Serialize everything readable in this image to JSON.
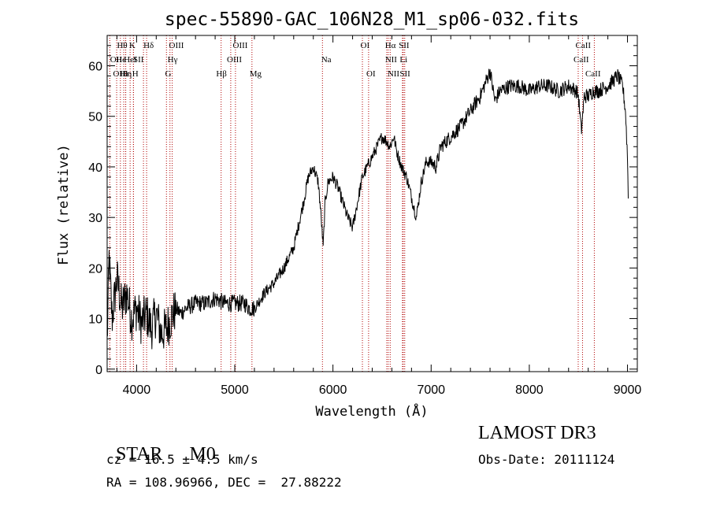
{
  "chart_data": {
    "type": "line",
    "title": "spec-55890-GAC_106N28_M1_sp06-032.fits",
    "xlabel": "Wavelength (Å)",
    "ylabel": "Flux (relative)",
    "xlim": [
      3700,
      9100
    ],
    "ylim": [
      -0.5,
      66
    ],
    "xticks": [
      4000,
      5000,
      6000,
      7000,
      8000,
      9000
    ],
    "yticks": [
      0,
      10,
      20,
      30,
      40,
      50,
      60
    ],
    "spectrum_anchor_points": [
      [
        3700,
        5
      ],
      [
        3720,
        22
      ],
      [
        3750,
        10
      ],
      [
        3800,
        18
      ],
      [
        3850,
        12
      ],
      [
        3900,
        15
      ],
      [
        3950,
        10
      ],
      [
        4000,
        12
      ],
      [
        4050,
        9
      ],
      [
        4100,
        11
      ],
      [
        4150,
        8
      ],
      [
        4200,
        11
      ],
      [
        4250,
        7
      ],
      [
        4300,
        8
      ],
      [
        4350,
        10
      ],
      [
        4400,
        12
      ],
      [
        4450,
        11
      ],
      [
        4500,
        12
      ],
      [
        4600,
        13
      ],
      [
        4700,
        13
      ],
      [
        4800,
        14
      ],
      [
        4900,
        13
      ],
      [
        5000,
        13
      ],
      [
        5100,
        13
      ],
      [
        5150,
        12
      ],
      [
        5200,
        12
      ],
      [
        5300,
        15
      ],
      [
        5400,
        17
      ],
      [
        5500,
        20
      ],
      [
        5600,
        24
      ],
      [
        5700,
        33
      ],
      [
        5750,
        38
      ],
      [
        5800,
        40
      ],
      [
        5850,
        37
      ],
      [
        5880,
        30
      ],
      [
        5900,
        24
      ],
      [
        5920,
        33
      ],
      [
        5950,
        37
      ],
      [
        6000,
        38
      ],
      [
        6050,
        36
      ],
      [
        6100,
        33
      ],
      [
        6150,
        30
      ],
      [
        6200,
        28
      ],
      [
        6250,
        33
      ],
      [
        6300,
        38
      ],
      [
        6350,
        40
      ],
      [
        6400,
        42
      ],
      [
        6450,
        44
      ],
      [
        6500,
        46
      ],
      [
        6550,
        45
      ],
      [
        6580,
        44
      ],
      [
        6620,
        46
      ],
      [
        6650,
        43
      ],
      [
        6700,
        40
      ],
      [
        6750,
        38
      ],
      [
        6800,
        34
      ],
      [
        6850,
        30
      ],
      [
        6900,
        37
      ],
      [
        6950,
        41
      ],
      [
        7000,
        41
      ],
      [
        7050,
        40
      ],
      [
        7100,
        44
      ],
      [
        7200,
        46
      ],
      [
        7300,
        48
      ],
      [
        7400,
        51
      ],
      [
        7500,
        54
      ],
      [
        7560,
        57
      ],
      [
        7600,
        59
      ],
      [
        7650,
        53
      ],
      [
        7700,
        55
      ],
      [
        7800,
        56
      ],
      [
        7900,
        56
      ],
      [
        8000,
        55
      ],
      [
        8100,
        56
      ],
      [
        8200,
        56
      ],
      [
        8300,
        55
      ],
      [
        8400,
        56
      ],
      [
        8480,
        55
      ],
      [
        8500,
        54
      ],
      [
        8530,
        47
      ],
      [
        8560,
        54
      ],
      [
        8600,
        54
      ],
      [
        8650,
        55
      ],
      [
        8700,
        55
      ],
      [
        8800,
        56
      ],
      [
        8900,
        58
      ],
      [
        8950,
        56
      ],
      [
        8980,
        51
      ],
      [
        9000,
        42
      ],
      [
        9010,
        32
      ]
    ],
    "lines": [
      {
        "label": "Hθ",
        "wl": 3797,
        "row": 1,
        "lx": 3800
      },
      {
        "label": "OII",
        "wl": 3727,
        "row": 2,
        "lx": 3730
      },
      {
        "label": "OIII",
        "wl": 3869,
        "row": 3,
        "lx": 3760
      },
      {
        "label": "Hε",
        "wl": 3889,
        "row": 3,
        "lx": 3830
      },
      {
        "label": "He",
        "wl": 3889,
        "row": 2,
        "lx": 3790
      },
      {
        "label": "K",
        "wl": 3934,
        "row": 1,
        "lx": 3925
      },
      {
        "label": "HeI",
        "wl": 3968,
        "row": 2,
        "lx": 3870
      },
      {
        "label": "η",
        "wl": 3835,
        "row": 3,
        "lx": 3905
      },
      {
        "label": "SII",
        "wl": 4070,
        "row": 2,
        "lx": 3965
      },
      {
        "label": "H",
        "wl": 3968,
        "row": 3,
        "lx": 3955
      },
      {
        "label": "Hδ",
        "wl": 4102,
        "row": 1,
        "lx": 4070
      },
      {
        "label": "OIII",
        "wl": 4363,
        "row": 1,
        "lx": 4330
      },
      {
        "label": "Hγ",
        "wl": 4340,
        "row": 2,
        "lx": 4315
      },
      {
        "label": "G",
        "wl": 4304,
        "row": 3,
        "lx": 4290
      },
      {
        "label": "Hβ",
        "wl": 4861,
        "row": 3,
        "lx": 4810
      },
      {
        "label": "OIII",
        "wl": 4959,
        "row": 2,
        "lx": 4920
      },
      {
        "label": "OIII",
        "wl": 5007,
        "row": 1,
        "lx": 4980
      },
      {
        "label": "Mg",
        "wl": 5175,
        "row": 3,
        "lx": 5150
      },
      {
        "label": "Na",
        "wl": 5893,
        "row": 2,
        "lx": 5880
      },
      {
        "label": "OI",
        "wl": 6300,
        "row": 1,
        "lx": 6280
      },
      {
        "label": "OI",
        "wl": 6363,
        "row": 3,
        "lx": 6340
      },
      {
        "label": "Hα",
        "wl": 6563,
        "row": 1,
        "lx": 6530
      },
      {
        "label": "NII",
        "wl": 6548,
        "row": 2,
        "lx": 6530
      },
      {
        "label": "NII",
        "wl": 6583,
        "row": 3,
        "lx": 6555
      },
      {
        "label": "SII",
        "wl": 6716,
        "row": 1,
        "lx": 6670
      },
      {
        "label": "Li",
        "wl": 6708,
        "row": 2,
        "lx": 6680
      },
      {
        "label": "SII",
        "wl": 6731,
        "row": 3,
        "lx": 6680
      },
      {
        "label": "CaII",
        "wl": 8498,
        "row": 1,
        "lx": 8470
      },
      {
        "label": "CaII",
        "wl": 8542,
        "row": 2,
        "lx": 8450
      },
      {
        "label": "CaII",
        "wl": 8662,
        "row": 3,
        "lx": 8570
      }
    ]
  },
  "info": {
    "class": "STAR",
    "subclass": "M0",
    "survey": "LAMOST DR3",
    "cz": "cz = 16.5 ± 4.5 km/s",
    "obs_date": "Obs-Date: 20111124",
    "radec": "RA = 108.96966, DEC =  27.88222"
  }
}
